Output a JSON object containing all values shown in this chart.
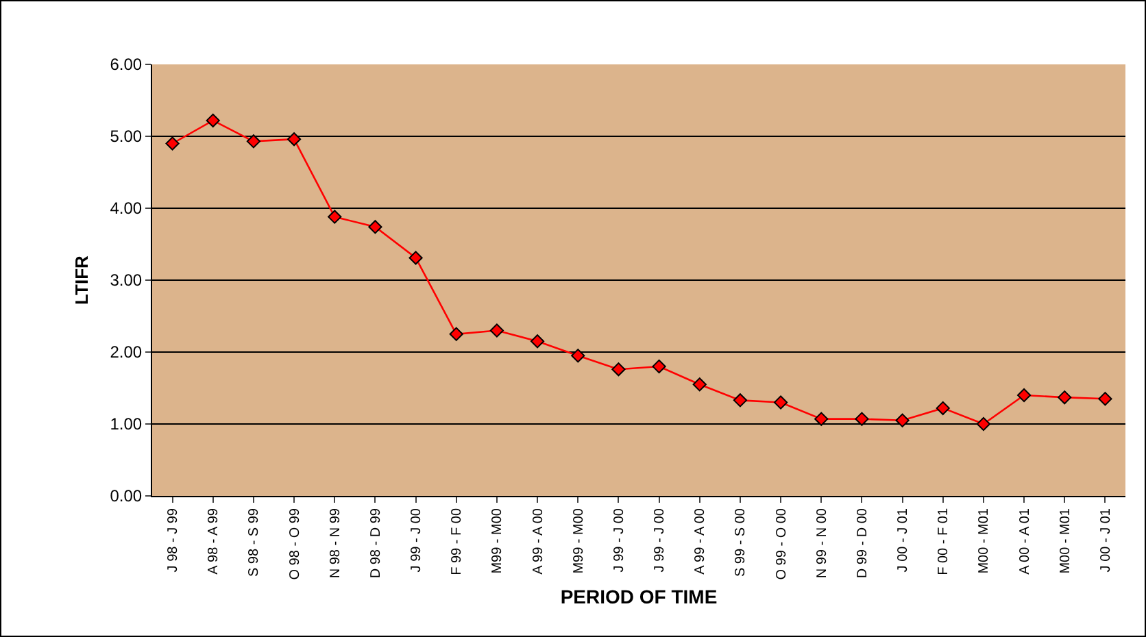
{
  "chart_data": {
    "type": "line",
    "xlabel": "PERIOD OF TIME",
    "ylabel": "LTIFR",
    "categories": [
      "J 98 - J 99",
      "A 98 - A 99",
      "S 98 - S 99",
      "O 98 - O 99",
      "N 98 - N 99",
      "D 98 - D 99",
      "J 99 - J 00",
      "F 99 - F 00",
      "M99 - M00",
      "A 99 - A 00",
      "M99 - M00",
      "J 99 - J 00",
      "J 99 - J 00",
      "A 99 - A 00",
      "S 99 - S 00",
      "O 99 - O 00",
      "N 99 - N 00",
      "D 99 - D 00",
      "J 00 - J 01",
      "F 00 - F 01",
      "M00 - M01",
      "A 00 - A 01",
      "M00 - M01",
      "J 00 - J 01"
    ],
    "series": [
      {
        "color": "#ff0000",
        "values": [
          4.9,
          5.22,
          4.93,
          4.96,
          3.88,
          3.74,
          3.31,
          2.25,
          2.3,
          2.15,
          1.95,
          1.76,
          1.8,
          1.55,
          1.33,
          1.3,
          1.07,
          1.07,
          1.05,
          1.22,
          1.0,
          1.4,
          1.37,
          1.35
        ]
      }
    ],
    "ylim": [
      0,
      6
    ],
    "yticks": [
      {
        "value": 0,
        "label": "0.00"
      },
      {
        "value": 1,
        "label": "1.00"
      },
      {
        "value": 2,
        "label": "2.00"
      },
      {
        "value": 3,
        "label": "3.00"
      },
      {
        "value": 4,
        "label": "4.00"
      },
      {
        "value": 5,
        "label": "5.00"
      },
      {
        "value": 6,
        "label": "6.00"
      }
    ],
    "grid": "y",
    "marker": "diamond",
    "line_style": "solid"
  }
}
